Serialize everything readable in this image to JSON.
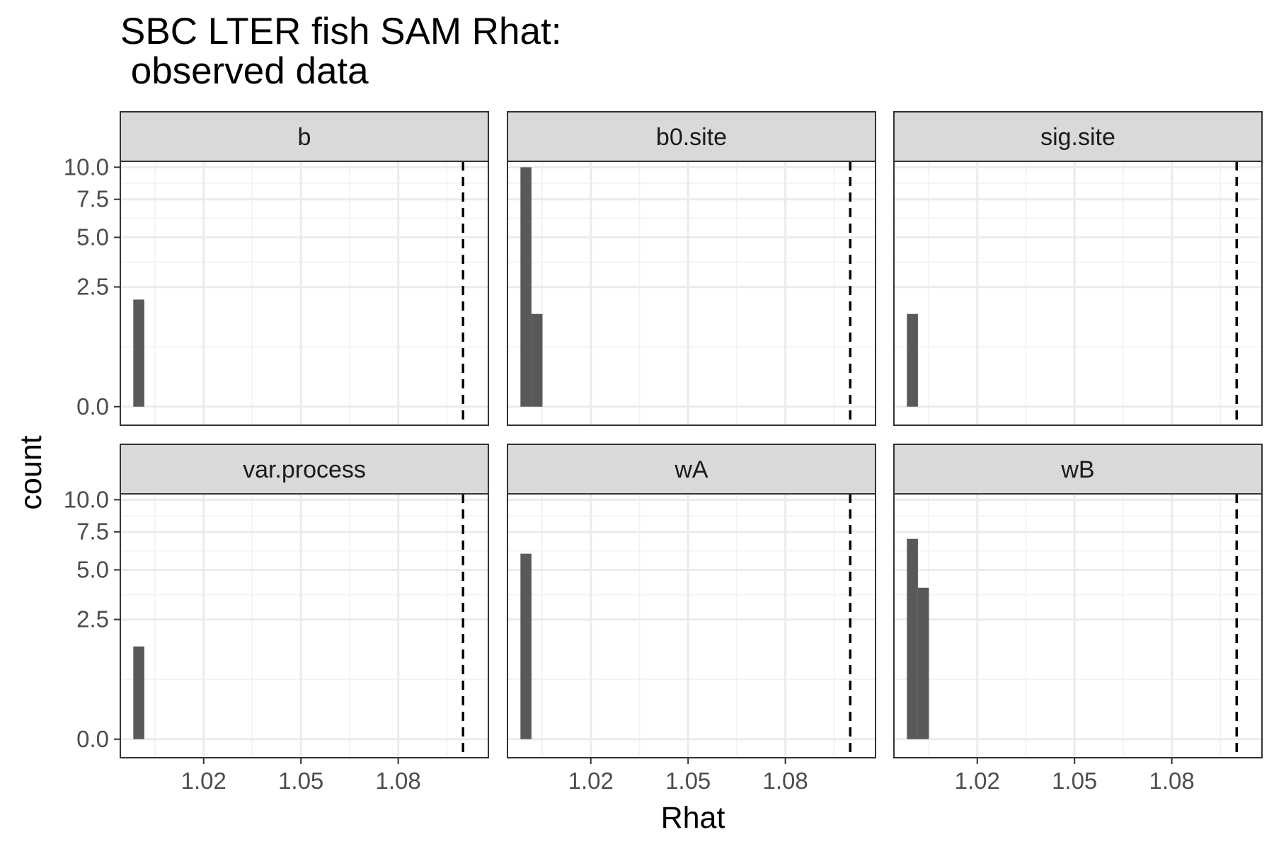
{
  "chart_data": {
    "type": "bar",
    "title_lines": [
      "SBC LTER fish SAM Rhat:",
      " observed data"
    ],
    "xlabel": "Rhat",
    "ylabel": "count",
    "x_ticks": [
      1.02,
      1.05,
      1.08
    ],
    "x_tick_labels": [
      "1.02",
      "1.05",
      "1.08"
    ],
    "y_ticks": [
      0.0,
      2.5,
      5.0,
      7.5,
      10.0
    ],
    "y_tick_labels": [
      "0.0",
      "2.5",
      "5.0",
      "7.5",
      "10.0"
    ],
    "y_scale": "sqrt",
    "xlim": [
      0.9943,
      1.1078
    ],
    "ylim": [
      -0.06,
      10.5
    ],
    "bin_width": 0.0034,
    "reference_line": {
      "x": 1.1,
      "style": "dashed",
      "color": "#000000"
    },
    "grid": true,
    "bar_color": "#595959",
    "strip_fill": "#d9d9d9",
    "panel_layout": {
      "ncol": 3,
      "nrow": 2
    },
    "panels": [
      {
        "name": "b",
        "bins": [
          {
            "x": 1.0,
            "count": 2
          }
        ]
      },
      {
        "name": "b0.site",
        "bins": [
          {
            "x": 1.0,
            "count": 10
          },
          {
            "x": 1.0034,
            "count": 1.5
          }
        ]
      },
      {
        "name": "sig.site",
        "bins": [
          {
            "x": 1.0,
            "count": 1.5
          }
        ]
      },
      {
        "name": "var.process",
        "bins": [
          {
            "x": 1.0,
            "count": 1.5
          }
        ]
      },
      {
        "name": "wA",
        "bins": [
          {
            "x": 1.0,
            "count": 6
          }
        ]
      },
      {
        "name": "wB",
        "bins": [
          {
            "x": 1.0,
            "count": 7
          },
          {
            "x": 1.0034,
            "count": 4
          }
        ]
      }
    ]
  }
}
